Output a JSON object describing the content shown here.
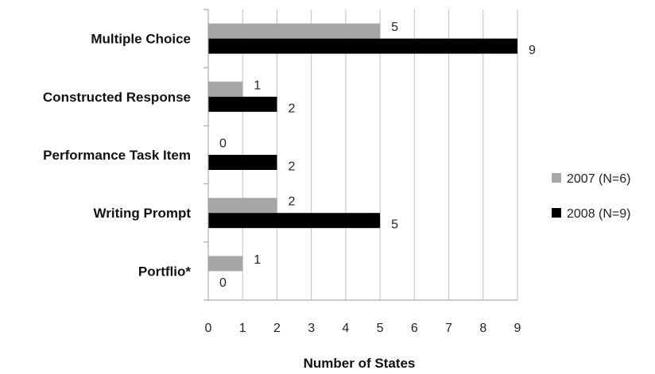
{
  "chart_data": {
    "type": "bar",
    "orientation": "horizontal",
    "categories": [
      "Multiple Choice",
      "Constructed Response",
      "Performance Task Item",
      "Writing Prompt",
      "Portflio*"
    ],
    "series": [
      {
        "name": "2007 (N=6)",
        "color": "#a6a6a6",
        "values": [
          5,
          1,
          0,
          2,
          1
        ]
      },
      {
        "name": "2008 (N=9)",
        "color": "#000000",
        "values": [
          9,
          2,
          2,
          5,
          0
        ]
      }
    ],
    "xlabel": "Number of States",
    "ylabel": "",
    "xlim": [
      0,
      9
    ],
    "xticks": [
      "0",
      "1",
      "2",
      "3",
      "4",
      "5",
      "6",
      "7",
      "8",
      "9"
    ],
    "grid": "vertical",
    "legend_position": "right"
  }
}
